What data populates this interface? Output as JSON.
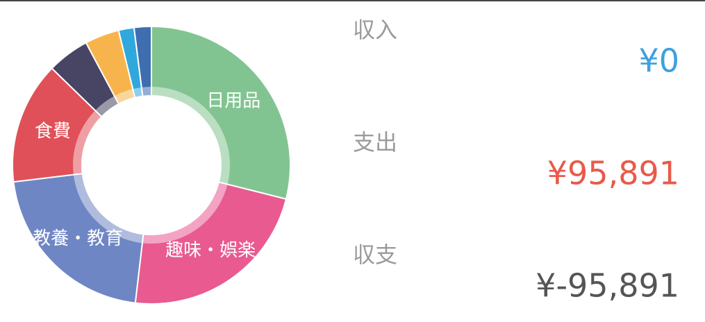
{
  "chart_data": {
    "type": "pie",
    "categories": [
      "日用品",
      "趣味・娯楽",
      "教養・教育",
      "食費",
      null,
      null,
      null,
      null
    ],
    "values": [
      28.9,
      22.9,
      21.2,
      14.2,
      4.9,
      4.0,
      1.8,
      2.0
    ],
    "colors": [
      "#82c491",
      "#e85a90",
      "#6f86c4",
      "#e05058",
      "#474563",
      "#f8b44c",
      "#30a8dc",
      "#3e6db0"
    ]
  },
  "summary": [
    {
      "label": "収入",
      "amount": "¥0",
      "color": "#3fa0e0"
    },
    {
      "label": "支出",
      "amount": "¥95,891",
      "color": "#e85a4a"
    },
    {
      "label": "収支",
      "amount": "¥-95,891",
      "color": "#555555"
    }
  ]
}
